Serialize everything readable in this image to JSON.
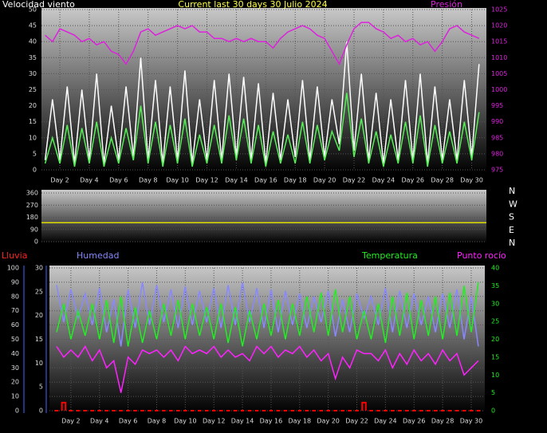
{
  "chart_data": [
    {
      "type": "line",
      "title": "Current last 30 days 30 Julio 2024",
      "x": [
        1,
        1.5,
        2,
        2.5,
        3,
        3.5,
        4,
        4.5,
        5,
        5.5,
        6,
        6.5,
        7,
        7.5,
        8,
        8.5,
        9,
        9.5,
        10,
        10.5,
        11,
        11.5,
        12,
        12.5,
        13,
        13.5,
        14,
        14.5,
        15,
        15.5,
        16,
        16.5,
        17,
        17.5,
        18,
        18.5,
        19,
        19.5,
        20,
        20.5,
        21,
        21.5,
        22,
        22.5,
        23,
        23.5,
        24,
        24.5,
        25,
        25.5,
        26,
        26.5,
        27,
        27.5,
        28,
        28.5,
        29,
        29.5,
        30,
        30.5
      ],
      "xlim": [
        0.75,
        31
      ],
      "xticks": [
        {
          "value": 2,
          "label": "Day 2"
        },
        {
          "value": 4,
          "label": "Day 4"
        },
        {
          "value": 6,
          "label": "Day 6"
        },
        {
          "value": 8,
          "label": "Day 8"
        },
        {
          "value": 10,
          "label": "Day 10"
        },
        {
          "value": 12,
          "label": "Day 12"
        },
        {
          "value": 14,
          "label": "Day 14"
        },
        {
          "value": 16,
          "label": "Day 16"
        },
        {
          "value": 18,
          "label": "Day 18"
        },
        {
          "value": 20,
          "label": "Day 20"
        },
        {
          "value": 22,
          "label": "Day 22"
        },
        {
          "value": 24,
          "label": "Day 24"
        },
        {
          "value": 26,
          "label": "Day 26"
        },
        {
          "value": 28,
          "label": "Day 28"
        },
        {
          "value": 30,
          "label": "Day 30"
        }
      ],
      "ylim": [
        0,
        50
      ],
      "yticks": [
        0,
        5,
        10,
        15,
        20,
        25,
        30,
        35,
        40,
        45,
        50
      ],
      "y2lim": [
        975,
        1025
      ],
      "y2ticks": [
        975,
        980,
        985,
        990,
        995,
        1000,
        1005,
        1010,
        1015,
        1020,
        1025
      ],
      "grid": true,
      "series": [
        {
          "name": "Velocidad viento",
          "color": "#ffffff",
          "values": [
            3,
            22,
            3,
            26,
            2,
            25,
            3,
            30,
            2,
            20,
            3,
            26,
            4,
            35,
            3,
            28,
            2,
            26,
            3,
            31,
            2,
            22,
            3,
            28,
            3,
            30,
            4,
            29,
            3,
            27,
            2,
            24,
            3,
            22,
            4,
            28,
            3,
            26,
            4,
            22,
            8,
            40,
            6,
            30,
            3,
            24,
            2,
            22,
            3,
            28,
            3,
            30,
            2,
            26,
            3,
            22,
            3,
            28,
            4,
            33
          ]
        },
        {
          "color": "#55ee55",
          "values": [
            2,
            10,
            2,
            14,
            1,
            13,
            2,
            15,
            1,
            10,
            2,
            13,
            3,
            20,
            2,
            15,
            1,
            14,
            2,
            16,
            1,
            11,
            2,
            14,
            2,
            17,
            3,
            16,
            2,
            14,
            1,
            12,
            2,
            11,
            2,
            15,
            2,
            14,
            3,
            12,
            6,
            24,
            4,
            16,
            2,
            12,
            1,
            11,
            2,
            15,
            2,
            17,
            1,
            14,
            2,
            12,
            2,
            15,
            3,
            18
          ]
        },
        {
          "name": "Presión",
          "color": "#dd22dd",
          "axis": "y2",
          "values": [
            1017,
            1015,
            1019,
            1018,
            1017,
            1015,
            1016,
            1014,
            1015,
            1012,
            1011,
            1008,
            1012,
            1018,
            1019,
            1017,
            1018,
            1019,
            1020,
            1019,
            1020,
            1018,
            1018,
            1016,
            1016,
            1015,
            1016,
            1015,
            1016,
            1015,
            1015,
            1013,
            1016,
            1018,
            1019,
            1020,
            1019,
            1017,
            1016,
            1012,
            1008,
            1014,
            1019,
            1021,
            1021,
            1019,
            1018,
            1016,
            1017,
            1015,
            1016,
            1014,
            1015,
            1012,
            1015,
            1019,
            1020,
            1018,
            1017,
            1016
          ]
        }
      ]
    },
    {
      "type": "line",
      "x": [
        0.75,
        31
      ],
      "xlim": [
        0.75,
        31
      ],
      "ylim": [
        0,
        360
      ],
      "yticks": [
        0,
        90,
        180,
        270,
        360
      ],
      "grid": true,
      "direction_labels": [
        "N",
        "W",
        "S",
        "E",
        "N"
      ],
      "series": [
        {
          "color": "#dddd00",
          "values": [
            140,
            140
          ]
        }
      ]
    },
    {
      "type": "line",
      "x": [
        1,
        1.5,
        2,
        2.5,
        3,
        3.5,
        4,
        4.5,
        5,
        5.5,
        6,
        6.5,
        7,
        7.5,
        8,
        8.5,
        9,
        9.5,
        10,
        10.5,
        11,
        11.5,
        12,
        12.5,
        13,
        13.5,
        14,
        14.5,
        15,
        15.5,
        16,
        16.5,
        17,
        17.5,
        18,
        18.5,
        19,
        19.5,
        20,
        20.5,
        21,
        21.5,
        22,
        22.5,
        23,
        23.5,
        24,
        24.5,
        25,
        25.5,
        26,
        26.5,
        27,
        27.5,
        28,
        28.5,
        29,
        29.5,
        30,
        30.5
      ],
      "xlim": [
        0.5,
        30.95
      ],
      "xticks": [
        {
          "value": 2,
          "label": "Day 2"
        },
        {
          "value": 4,
          "label": "Day 4"
        },
        {
          "value": 6,
          "label": "Day 6"
        },
        {
          "value": 8,
          "label": "Day 8"
        },
        {
          "value": 10,
          "label": "Day 10"
        },
        {
          "value": 12,
          "label": "Day 12"
        },
        {
          "value": 14,
          "label": "Day 14"
        },
        {
          "value": 16,
          "label": "Day 16"
        },
        {
          "value": 18,
          "label": "Day 18"
        },
        {
          "value": 20,
          "label": "Day 20"
        },
        {
          "value": 22,
          "label": "Day 22"
        },
        {
          "value": 24,
          "label": "Day 24"
        },
        {
          "value": 26,
          "label": "Day 26"
        },
        {
          "value": 28,
          "label": "Day 28"
        },
        {
          "value": 30,
          "label": "Day 30"
        }
      ],
      "ylim": [
        0,
        100
      ],
      "yticks": [
        0,
        10,
        20,
        30,
        40,
        50,
        60,
        70,
        80,
        90,
        100
      ],
      "y3lim": [
        0,
        30
      ],
      "y3ticks": [
        0,
        5,
        10,
        15,
        20,
        25,
        30
      ],
      "y2lim": [
        0,
        40
      ],
      "y2ticks": [
        0,
        5,
        10,
        15,
        20,
        25,
        30,
        35,
        40
      ],
      "grid": true,
      "series": [
        {
          "name": "Lluvia",
          "color": "#ff0000",
          "axis": "y3",
          "style": "step",
          "values": [
            0,
            1.7,
            0,
            0,
            0,
            0,
            0,
            0,
            0,
            0,
            0,
            0,
            0,
            0,
            0,
            0,
            0,
            0,
            0,
            0,
            0,
            0,
            0,
            0,
            0,
            0,
            0,
            0,
            0,
            0,
            0,
            0,
            0,
            0,
            0,
            0,
            0,
            0,
            0,
            0,
            0,
            0,
            0,
            1.7,
            0,
            0,
            0,
            0,
            0,
            0,
            0,
            0,
            0,
            0,
            0,
            0,
            0,
            0,
            0,
            0
          ]
        },
        {
          "name": "Humedad",
          "color": "#8888ff",
          "values": [
            88,
            62,
            85,
            65,
            82,
            60,
            86,
            55,
            78,
            45,
            85,
            58,
            90,
            60,
            88,
            62,
            85,
            58,
            87,
            60,
            84,
            62,
            86,
            58,
            88,
            60,
            90,
            62,
            86,
            58,
            85,
            55,
            84,
            60,
            82,
            58,
            80,
            62,
            84,
            52,
            78,
            55,
            82,
            65,
            80,
            60,
            86,
            55,
            84,
            58,
            82,
            60,
            80,
            55,
            82,
            58,
            85,
            50,
            80,
            45
          ]
        },
        {
          "name": "Temperatura",
          "color": "#22ee22",
          "axis": "y2",
          "values": [
            22,
            30,
            20,
            28,
            21,
            30,
            20,
            31,
            19,
            32,
            18,
            29,
            19,
            28,
            20,
            30,
            21,
            31,
            20,
            30,
            21,
            29,
            20,
            30,
            19,
            29,
            18,
            28,
            20,
            30,
            21,
            31,
            20,
            30,
            21,
            32,
            22,
            33,
            21,
            34,
            22,
            32,
            20,
            28,
            20,
            30,
            19,
            32,
            21,
            33,
            20,
            31,
            21,
            32,
            20,
            33,
            21,
            35,
            22,
            36
          ]
        },
        {
          "name": "Punto rocío",
          "color": "#ff22ff",
          "axis": "y2",
          "values": [
            18,
            15,
            17,
            15,
            18,
            14,
            17,
            12,
            14,
            5,
            15,
            13,
            17,
            16,
            17,
            15,
            17,
            14,
            18,
            16,
            17,
            16,
            18,
            15,
            17,
            15,
            16,
            14,
            18,
            16,
            18,
            15,
            17,
            16,
            18,
            15,
            17,
            14,
            16,
            9,
            15,
            12,
            17,
            16,
            16,
            14,
            17,
            12,
            16,
            13,
            17,
            14,
            16,
            13,
            17,
            14,
            16,
            10,
            12,
            14
          ]
        }
      ]
    }
  ]
}
